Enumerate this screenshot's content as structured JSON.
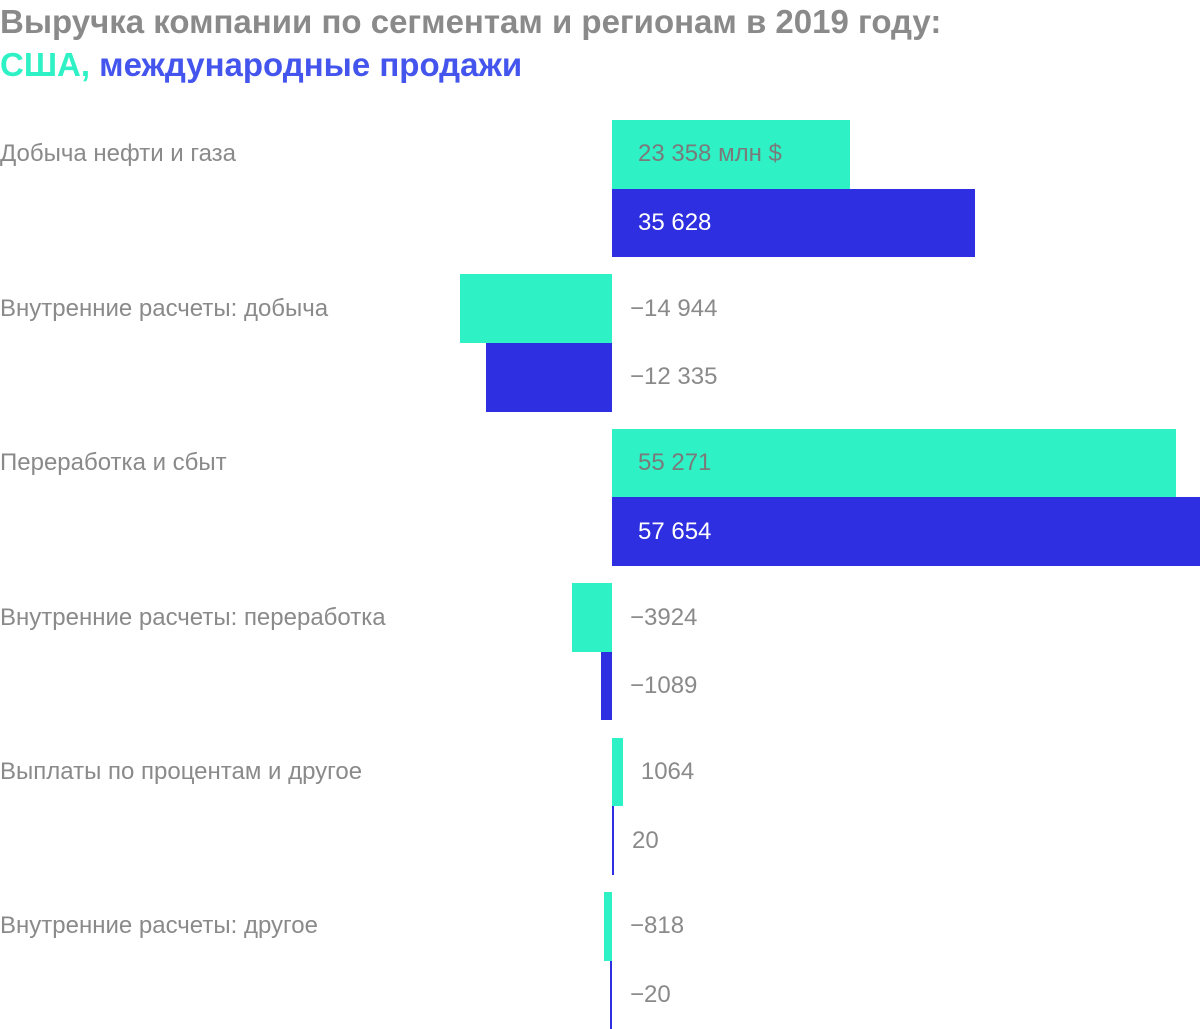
{
  "chart_data": {
    "type": "bar",
    "orientation": "horizontal",
    "title": "Выручка компании по сегментам и регионам в 2019 году:",
    "legend_inline": true,
    "series": [
      {
        "name": "США",
        "color": "#2ef2c5",
        "values": [
          23358,
          -14944,
          55271,
          -3924,
          1064,
          -818
        ],
        "labels": [
          "23 358 млн $",
          "−14 944",
          "55 271",
          "−3924",
          "1064",
          "−818"
        ]
      },
      {
        "name": "международные продажи",
        "color": "#2d2fe0",
        "values": [
          35628,
          -12335,
          57654,
          -1089,
          20,
          -20
        ],
        "labels": [
          "35 628",
          "−12 335",
          "57 654",
          "−1089",
          "20",
          "−20"
        ]
      }
    ],
    "categories": [
      "Добыча нефти и газа",
      "Внутренние расчеты: добыча",
      "Переработка и сбыт",
      "Внутренние расчеты: переработка",
      "Выплаты по процентам и другое",
      "Внутренние расчеты: другое"
    ],
    "legend_separator": ","
  }
}
